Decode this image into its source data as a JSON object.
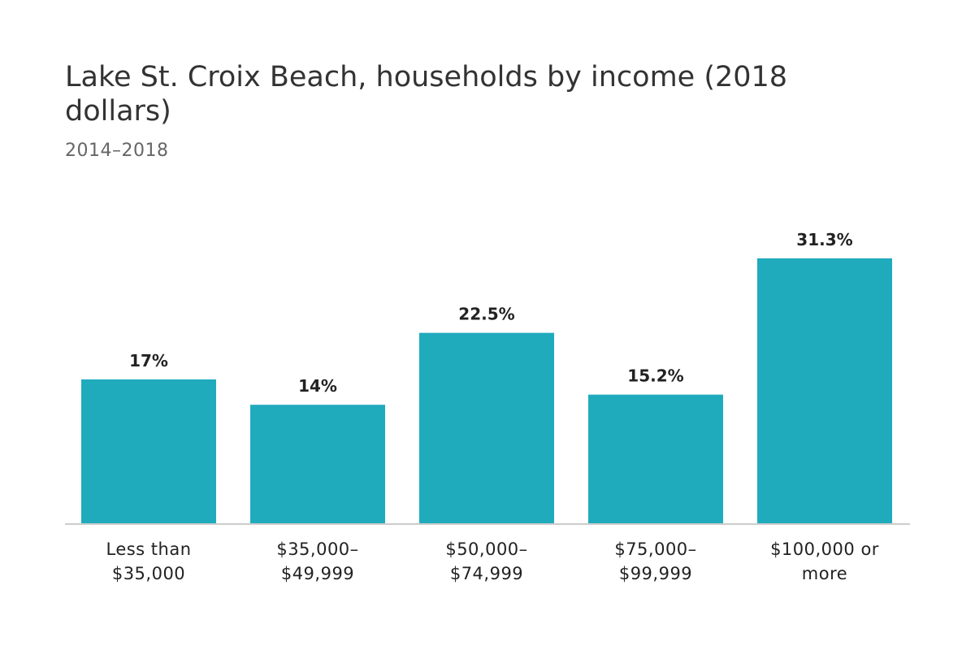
{
  "chart_data": {
    "type": "bar",
    "title": "Lake St. Croix Beach, households by income (2018 dollars)",
    "subtitle": "2014–2018",
    "categories": [
      [
        "Less than",
        "$35,000"
      ],
      [
        "$35,000–",
        "$49,999"
      ],
      [
        "$50,000–",
        "$74,999"
      ],
      [
        "$75,000–",
        "$99,999"
      ],
      [
        "$100,000 or",
        "more"
      ]
    ],
    "values": [
      17,
      14,
      22.5,
      15.2,
      31.3
    ],
    "data_labels": [
      "17%",
      "14%",
      "22.5%",
      "15.2%",
      "31.3%"
    ],
    "ylim": [
      0,
      31.3
    ],
    "grid": false,
    "colors": {
      "bar": "#20abbd",
      "axis": "#cccccc"
    }
  }
}
